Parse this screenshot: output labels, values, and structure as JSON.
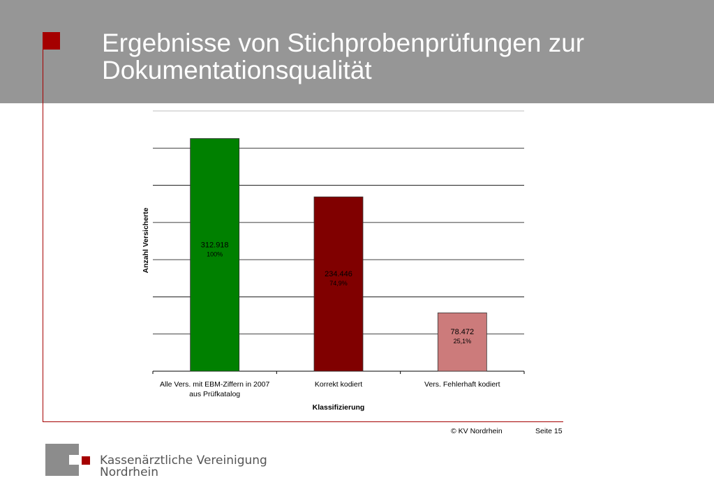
{
  "slide": {
    "title_line1": "Ergebnisse von Stichprobenprüfungen zur",
    "title_line2": "Dokumentationsqualität",
    "copyright": "© KV Nordrhein",
    "page": "Seite 15",
    "logo_line1": "Kassenärztliche Vereinigung",
    "logo_line2": "Nordrhein"
  },
  "colors": {
    "header": "#969696",
    "accent": "#a50000"
  },
  "chart_data": {
    "type": "bar",
    "title": "",
    "xlabel": "Klassifizierung",
    "ylabel": "Anzahl Versicherte",
    "categories": [
      [
        "Alle Vers. mit EBM-Ziffern in 2007",
        "aus Prüfkatalog"
      ],
      [
        "Korrekt kodiert"
      ],
      [
        "Vers. Fehlerhaft kodiert"
      ]
    ],
    "values": [
      312918,
      234446,
      78472
    ],
    "value_labels": [
      "312.918",
      "234.446",
      "78.472"
    ],
    "percent_labels": [
      "100%",
      "74,9%",
      "25,1%"
    ],
    "bar_colors": [
      "#008000",
      "#800000",
      "#cc7b7b"
    ],
    "ylim": [
      0,
      350000
    ],
    "y_gridline_step": 50000,
    "grid": true,
    "legend": "none"
  }
}
